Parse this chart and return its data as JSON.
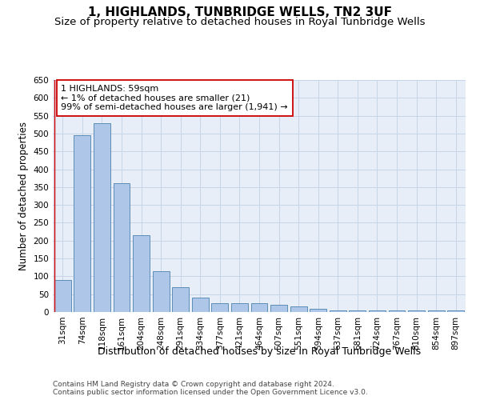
{
  "title": "1, HIGHLANDS, TUNBRIDGE WELLS, TN2 3UF",
  "subtitle": "Size of property relative to detached houses in Royal Tunbridge Wells",
  "xlabel": "Distribution of detached houses by size in Royal Tunbridge Wells",
  "ylabel": "Number of detached properties",
  "footer_line1": "Contains HM Land Registry data © Crown copyright and database right 2024.",
  "footer_line2": "Contains public sector information licensed under the Open Government Licence v3.0.",
  "annotation_line1": "1 HIGHLANDS: 59sqm",
  "annotation_line2": "← 1% of detached houses are smaller (21)",
  "annotation_line3": "99% of semi-detached houses are larger (1,941) →",
  "bar_color": "#aec6e8",
  "bar_edge_color": "#5b8db8",
  "highlight_color": "#cc0000",
  "categories": [
    "31sqm",
    "74sqm",
    "118sqm",
    "161sqm",
    "204sqm",
    "248sqm",
    "291sqm",
    "334sqm",
    "377sqm",
    "421sqm",
    "464sqm",
    "507sqm",
    "551sqm",
    "594sqm",
    "637sqm",
    "681sqm",
    "724sqm",
    "767sqm",
    "810sqm",
    "854sqm",
    "897sqm"
  ],
  "values": [
    90,
    495,
    530,
    360,
    215,
    115,
    70,
    40,
    25,
    25,
    25,
    20,
    15,
    8,
    5,
    5,
    5,
    5,
    5,
    5,
    5
  ],
  "ylim": [
    0,
    650
  ],
  "yticks": [
    0,
    50,
    100,
    150,
    200,
    250,
    300,
    350,
    400,
    450,
    500,
    550,
    600,
    650
  ],
  "grid_color": "#c8d4e8",
  "bg_color": "#e8eef8",
  "title_fontsize": 11,
  "subtitle_fontsize": 9.5,
  "ylabel_fontsize": 8.5,
  "xlabel_fontsize": 9,
  "tick_fontsize": 7.5,
  "annotation_fontsize": 8,
  "footer_fontsize": 6.5
}
